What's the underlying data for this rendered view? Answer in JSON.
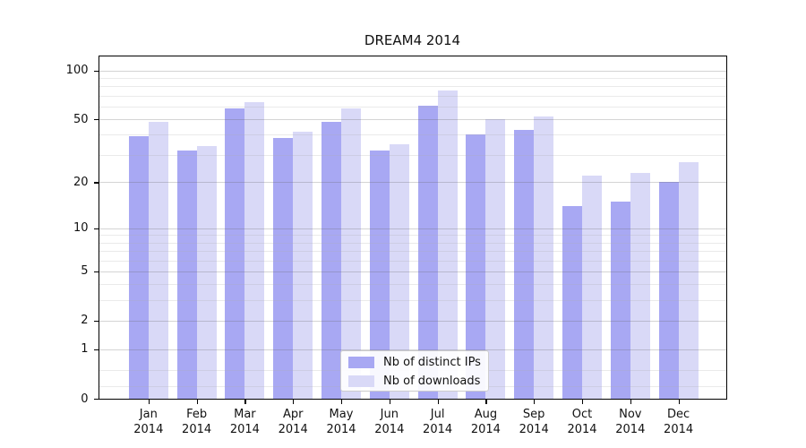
{
  "chart_data": {
    "type": "bar",
    "title": "DREAM4 2014",
    "xlabel": "",
    "ylabel": "",
    "year": "2014",
    "categories": [
      "Jan",
      "Feb",
      "Mar",
      "Apr",
      "May",
      "Jun",
      "Jul",
      "Aug",
      "Sep",
      "Oct",
      "Nov",
      "Dec"
    ],
    "series": [
      {
        "name": "Nb of distinct IPs",
        "color": "#a8a8f3",
        "values": [
          39,
          32,
          58,
          38,
          48,
          32,
          61,
          40,
          43,
          14,
          15,
          20
        ]
      },
      {
        "name": "Nb of downloads",
        "color": "#d9d9f7",
        "values": [
          48,
          34,
          64,
          42,
          58,
          35,
          75,
          50,
          52,
          22,
          23,
          27
        ]
      }
    ],
    "y_scale": "log1p",
    "ylim": [
      0,
      123
    ],
    "y_ticks": [
      0,
      1,
      2,
      5,
      10,
      20,
      50,
      100
    ],
    "y_minor_ticks": [
      0.2,
      0.5,
      3,
      4,
      6,
      7,
      8,
      9,
      30,
      40,
      60,
      70,
      80,
      90
    ],
    "grid": "on",
    "legend_position": "bottom-center",
    "colors": {
      "major_grid": "rgba(100,100,100,0.28)",
      "minor_grid": "rgba(170,170,170,0.25)",
      "axis": "#000000",
      "text": "#111111"
    }
  }
}
